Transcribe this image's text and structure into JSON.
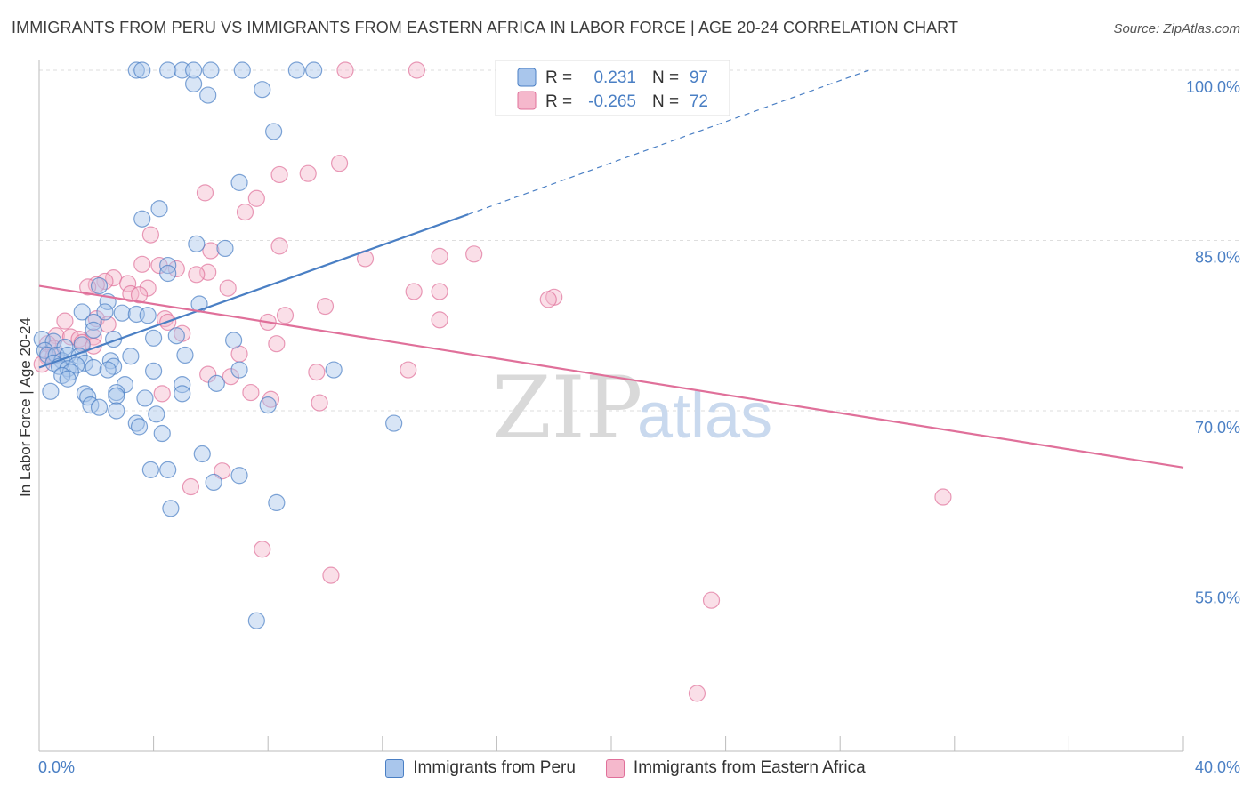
{
  "chart_data": {
    "type": "scatter",
    "title": "IMMIGRANTS FROM PERU VS IMMIGRANTS FROM EASTERN AFRICA IN LABOR FORCE | AGE 20-24 CORRELATION CHART",
    "source": "Source: ZipAtlas.com",
    "ylabel": "In Labor Force | Age 20-24",
    "xlim": [
      0,
      40
    ],
    "ylim": [
      40,
      100
    ],
    "x_tick_labels": [
      "0.0%",
      "40.0%"
    ],
    "y_ticks": [
      {
        "value": 100,
        "label": "100.0%"
      },
      {
        "value": 85,
        "label": "85.0%"
      },
      {
        "value": 70,
        "label": "70.0%"
      },
      {
        "value": 55,
        "label": "55.0%"
      }
    ],
    "watermark": {
      "zip": "ZIP",
      "atlas": "atlas"
    },
    "legend": [
      {
        "r_label": "R =",
        "r_value": "0.231",
        "n_label": "N =",
        "n_value": "97"
      },
      {
        "r_label": "R =",
        "r_value": "-0.265",
        "n_label": "N =",
        "n_value": "72"
      }
    ],
    "series": [
      {
        "name": "Immigrants from Peru",
        "color": "#4a7fc4",
        "fill": "#a9c6ec",
        "trend": {
          "x0": 0,
          "y0": 73.8,
          "x1": 15,
          "y1": 87.3,
          "dash_to_x": 29,
          "dash_to_y": 100
        },
        "points": [
          [
            3.4,
            100
          ],
          [
            3.6,
            100
          ],
          [
            4.5,
            100
          ],
          [
            5.0,
            100
          ],
          [
            5.4,
            100
          ],
          [
            6.0,
            100
          ],
          [
            7.1,
            100
          ],
          [
            9.0,
            100
          ],
          [
            9.6,
            100
          ],
          [
            5.4,
            98.8
          ],
          [
            5.9,
            97.8
          ],
          [
            7.8,
            98.3
          ],
          [
            8.2,
            94.6
          ],
          [
            7.0,
            90.1
          ],
          [
            4.2,
            87.8
          ],
          [
            3.6,
            86.9
          ],
          [
            5.5,
            84.7
          ],
          [
            6.5,
            84.3
          ],
          [
            4.5,
            82.8
          ],
          [
            4.5,
            82.1
          ],
          [
            2.1,
            81.0
          ],
          [
            5.6,
            79.4
          ],
          [
            2.4,
            79.6
          ],
          [
            2.3,
            78.7
          ],
          [
            2.9,
            78.6
          ],
          [
            3.4,
            78.5
          ],
          [
            3.8,
            78.4
          ],
          [
            1.5,
            78.7
          ],
          [
            1.9,
            77.8
          ],
          [
            1.9,
            77.1
          ],
          [
            0.1,
            76.3
          ],
          [
            0.5,
            76.1
          ],
          [
            0.9,
            75.6
          ],
          [
            1.5,
            75.8
          ],
          [
            2.6,
            76.3
          ],
          [
            4.0,
            76.4
          ],
          [
            4.8,
            76.6
          ],
          [
            6.8,
            76.2
          ],
          [
            0.2,
            75.3
          ],
          [
            0.3,
            74.9
          ],
          [
            0.6,
            74.9
          ],
          [
            0.8,
            74.4
          ],
          [
            1.0,
            74.9
          ],
          [
            1.4,
            74.8
          ],
          [
            1.6,
            74.2
          ],
          [
            2.5,
            74.4
          ],
          [
            3.2,
            74.8
          ],
          [
            0.5,
            74.2
          ],
          [
            0.7,
            73.9
          ],
          [
            1.0,
            73.7
          ],
          [
            1.3,
            74.0
          ],
          [
            1.9,
            73.8
          ],
          [
            2.6,
            73.9
          ],
          [
            2.4,
            73.6
          ],
          [
            1.1,
            73.4
          ],
          [
            0.8,
            73.1
          ],
          [
            1.0,
            72.8
          ],
          [
            4.0,
            73.5
          ],
          [
            5.1,
            74.9
          ],
          [
            7.0,
            73.6
          ],
          [
            10.3,
            73.6
          ],
          [
            3.0,
            72.3
          ],
          [
            5.0,
            72.3
          ],
          [
            6.2,
            72.4
          ],
          [
            0.4,
            71.7
          ],
          [
            1.6,
            71.5
          ],
          [
            1.7,
            71.2
          ],
          [
            2.7,
            71.6
          ],
          [
            2.7,
            71.3
          ],
          [
            3.7,
            71.1
          ],
          [
            5.0,
            71.5
          ],
          [
            1.8,
            70.5
          ],
          [
            2.1,
            70.3
          ],
          [
            2.7,
            70.0
          ],
          [
            4.1,
            69.7
          ],
          [
            8.0,
            70.5
          ],
          [
            3.4,
            68.9
          ],
          [
            3.5,
            68.6
          ],
          [
            4.3,
            68.0
          ],
          [
            12.4,
            68.9
          ],
          [
            5.7,
            66.2
          ],
          [
            3.9,
            64.8
          ],
          [
            4.5,
            64.8
          ],
          [
            6.1,
            63.7
          ],
          [
            7.0,
            64.3
          ],
          [
            4.6,
            61.4
          ],
          [
            8.3,
            61.9
          ],
          [
            7.6,
            51.5
          ]
        ]
      },
      {
        "name": "Immigrants from Eastern Africa",
        "color": "#e0709a",
        "fill": "#f5b8cc",
        "trend": {
          "x0": 0,
          "y0": 81.0,
          "x1": 40,
          "y1": 65.0
        },
        "points": [
          [
            13.2,
            100
          ],
          [
            10.7,
            100
          ],
          [
            10.5,
            91.8
          ],
          [
            8.4,
            90.8
          ],
          [
            9.4,
            90.9
          ],
          [
            5.8,
            89.2
          ],
          [
            7.6,
            88.7
          ],
          [
            7.2,
            87.5
          ],
          [
            3.9,
            85.5
          ],
          [
            8.4,
            84.5
          ],
          [
            6.0,
            84.1
          ],
          [
            11.4,
            83.4
          ],
          [
            14.0,
            83.6
          ],
          [
            15.2,
            83.8
          ],
          [
            3.6,
            82.9
          ],
          [
            4.2,
            82.8
          ],
          [
            4.8,
            82.5
          ],
          [
            5.9,
            82.2
          ],
          [
            5.5,
            82.0
          ],
          [
            2.6,
            81.7
          ],
          [
            2.3,
            81.4
          ],
          [
            2.0,
            81.1
          ],
          [
            3.1,
            81.2
          ],
          [
            1.7,
            80.9
          ],
          [
            3.8,
            80.8
          ],
          [
            6.6,
            80.8
          ],
          [
            3.2,
            80.3
          ],
          [
            3.5,
            80.2
          ],
          [
            13.1,
            80.5
          ],
          [
            14.0,
            80.5
          ],
          [
            18.0,
            80.0
          ],
          [
            17.8,
            79.8
          ],
          [
            10.0,
            79.2
          ],
          [
            2.0,
            78.1
          ],
          [
            0.9,
            77.9
          ],
          [
            2.4,
            77.6
          ],
          [
            4.4,
            78.1
          ],
          [
            4.5,
            77.8
          ],
          [
            8.0,
            77.8
          ],
          [
            8.6,
            78.4
          ],
          [
            14.0,
            78.0
          ],
          [
            0.6,
            76.6
          ],
          [
            1.1,
            76.5
          ],
          [
            1.9,
            76.5
          ],
          [
            1.4,
            76.3
          ],
          [
            0.3,
            75.9
          ],
          [
            0.5,
            75.5
          ],
          [
            1.5,
            76.0
          ],
          [
            1.9,
            75.7
          ],
          [
            5.0,
            76.8
          ],
          [
            7.0,
            75.0
          ],
          [
            8.3,
            75.9
          ],
          [
            0.3,
            74.7
          ],
          [
            0.1,
            74.1
          ],
          [
            0.5,
            74.8
          ],
          [
            5.9,
            73.2
          ],
          [
            6.7,
            73.0
          ],
          [
            9.7,
            73.4
          ],
          [
            12.9,
            73.6
          ],
          [
            4.3,
            71.5
          ],
          [
            7.4,
            71.6
          ],
          [
            8.1,
            71.0
          ],
          [
            9.8,
            70.7
          ],
          [
            5.3,
            63.3
          ],
          [
            6.4,
            64.7
          ],
          [
            31.6,
            62.4
          ],
          [
            7.8,
            57.8
          ],
          [
            10.2,
            55.5
          ],
          [
            23.5,
            53.3
          ],
          [
            23.0,
            45.1
          ]
        ]
      }
    ]
  }
}
